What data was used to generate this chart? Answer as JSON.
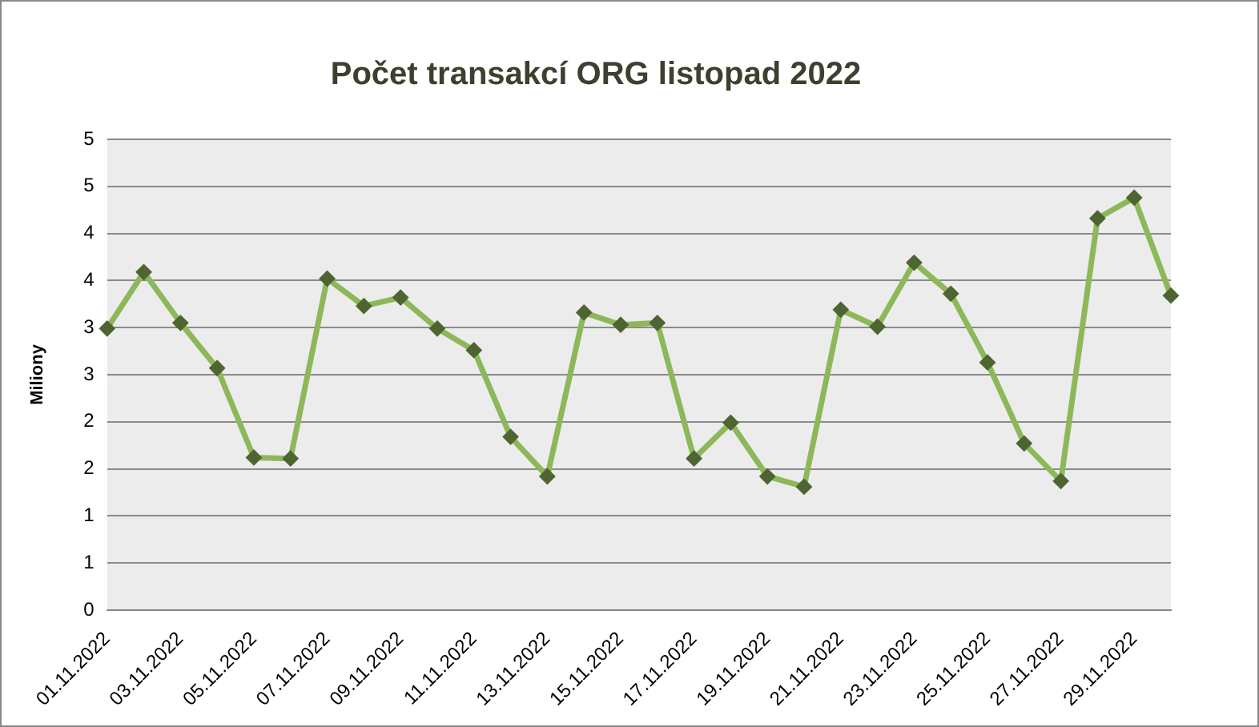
{
  "chart_data": {
    "type": "line",
    "title": "Počet transakcí ORG listopad 2022",
    "ylabel": "Miliony",
    "categories": [
      "01.11.2022",
      null,
      "03.11.2022",
      null,
      "05.11.2022",
      null,
      "07.11.2022",
      null,
      "09.11.2022",
      null,
      "11.11.2022",
      null,
      "13.11.2022",
      null,
      "15.11.2022",
      null,
      "17.11.2022",
      null,
      "19.11.2022",
      null,
      "21.11.2022",
      null,
      "23.11.2022",
      null,
      "25.11.2022",
      null,
      "27.11.2022",
      null,
      "29.11.2022",
      null
    ],
    "series": [
      {
        "color": "#8db85a",
        "values": [
          2.99,
          3.59,
          3.05,
          2.57,
          1.62,
          1.61,
          3.52,
          3.23,
          3.32,
          2.99,
          2.76,
          1.84,
          1.42,
          3.16,
          3.03,
          3.05,
          1.61,
          1.99,
          1.42,
          1.31,
          3.19,
          3.01,
          3.69,
          3.36,
          2.63,
          1.77,
          1.37,
          4.16,
          4.38,
          3.34
        ]
      }
    ],
    "ylim": [
      0,
      5
    ],
    "yticks": [
      0,
      {
        "value": 0.5,
        "label": "1"
      },
      1,
      {
        "value": 1.5,
        "label": "2"
      },
      2,
      {
        "value": 2.5,
        "label": "3"
      },
      3,
      {
        "value": 3.5,
        "label": "4"
      },
      4,
      {
        "value": 4.5,
        "label": "5"
      },
      5
    ],
    "grid": "y",
    "legend": false,
    "marker": "diamond",
    "line_style": "solid"
  }
}
